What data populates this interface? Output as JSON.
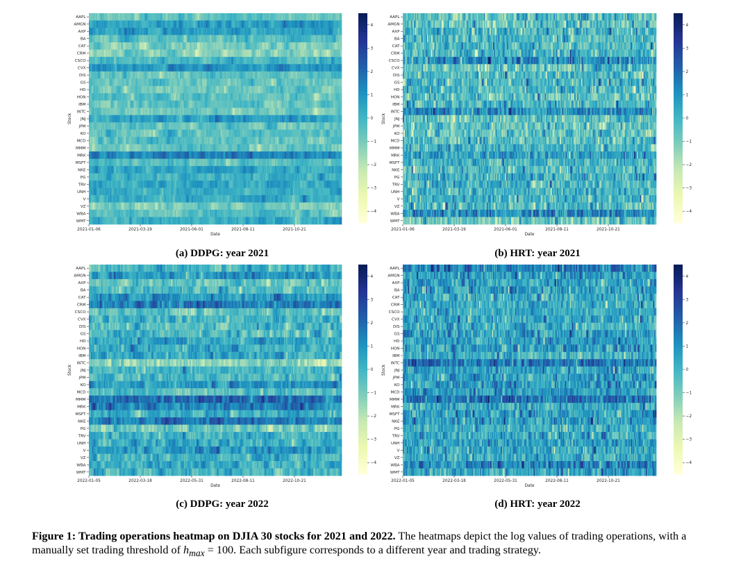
{
  "figure": {
    "caption_label": "Figure 1: Trading operations heatmap on DJIA 30 stocks for 2021 and 2022.",
    "caption_text_1": "The heatmaps depict the log values of trading operations, with a manually set trading threshold of",
    "caption_h": "h",
    "caption_sub": "max",
    "caption_eq": "= 100.",
    "caption_text_2": "Each subfigure corresponds to a different year and trading strategy."
  },
  "colors": {
    "colormap": "YlGnBu",
    "stops": [
      "#ffffd9",
      "#edf8b1",
      "#c7e9b4",
      "#7fcdbb",
      "#41b6c4",
      "#1d91c0",
      "#225ea8",
      "#253494",
      "#081d58"
    ]
  },
  "chart_data": [
    {
      "type": "heatmap",
      "subcaption": "(a) DDPG: year 2021",
      "xlabel": "Date",
      "ylabel": "Stock",
      "rows": [
        "AAPL",
        "AMGN",
        "AXP",
        "BA",
        "CAT",
        "CRM",
        "CSCO",
        "CVX",
        "DIS",
        "GS",
        "HD",
        "HON",
        "IBM",
        "INTC",
        "JNJ",
        "JPM",
        "KO",
        "MCD",
        "MMM",
        "MRK",
        "MSFT",
        "NKE",
        "PG",
        "TRV",
        "UNH",
        "V",
        "VZ",
        "WBA",
        "WMT"
      ],
      "x_ticks": [
        "2021-01-06",
        "2021-03-19",
        "2021-06-01",
        "2021-08-11",
        "2021-10-21"
      ],
      "colorbar": {
        "min": -4.5,
        "max": 4.5,
        "ticks": [
          "4",
          "3",
          "2",
          "1",
          "0",
          "−1",
          "−2",
          "−3",
          "−4"
        ]
      }
    },
    {
      "type": "heatmap",
      "subcaption": "(b) HRT: year 2021",
      "xlabel": "Date",
      "ylabel": "Stock",
      "rows": [
        "AAPL",
        "AMGN",
        "AXP",
        "BA",
        "CAT",
        "CRM",
        "CSCO",
        "CVX",
        "DIS",
        "GS",
        "HD",
        "HON",
        "IBM",
        "INTC",
        "JNJ",
        "JPM",
        "KO",
        "MCD",
        "MMM",
        "MRK",
        "MSFT",
        "NKE",
        "PG",
        "TRV",
        "UNH",
        "V",
        "VZ",
        "WBA",
        "WMT"
      ],
      "x_ticks": [
        "2021-01-06",
        "2021-03-19",
        "2021-06-01",
        "2021-08-11",
        "2021-10-21"
      ],
      "colorbar": {
        "min": -4.5,
        "max": 4.5,
        "ticks": [
          "4",
          "3",
          "2",
          "1",
          "0",
          "−1",
          "−2",
          "−3",
          "−4"
        ]
      }
    },
    {
      "type": "heatmap",
      "subcaption": "(c) DDPG: year 2022",
      "xlabel": "Date",
      "ylabel": "Stock",
      "rows": [
        "AAPL",
        "AMGN",
        "AXP",
        "BA",
        "CAT",
        "CRM",
        "CSCO",
        "CVX",
        "DIS",
        "GS",
        "HD",
        "HON",
        "IBM",
        "INTC",
        "JNJ",
        "JPM",
        "KO",
        "MCD",
        "MMM",
        "MRK",
        "MSFT",
        "NKE",
        "PG",
        "TRV",
        "UNH",
        "V",
        "VZ",
        "WBA",
        "WMT"
      ],
      "x_ticks": [
        "2022-01-05",
        "2022-03-18",
        "2022-05-31",
        "2022-08-11",
        "2022-10-21"
      ],
      "colorbar": {
        "min": -4.5,
        "max": 4.5,
        "ticks": [
          "4",
          "3",
          "2",
          "1",
          "0",
          "−1",
          "−2",
          "−3",
          "−4"
        ]
      }
    },
    {
      "type": "heatmap",
      "subcaption": "(d) HRT: year 2022",
      "xlabel": "Date",
      "ylabel": "Stock",
      "rows": [
        "AAPL",
        "AMGN",
        "AXP",
        "BA",
        "CAT",
        "CRM",
        "CSCO",
        "CVX",
        "DIS",
        "GS",
        "HD",
        "HON",
        "IBM",
        "INTC",
        "JNJ",
        "JPM",
        "KO",
        "MCD",
        "MMM",
        "MRK",
        "MSFT",
        "NKE",
        "PG",
        "TRV",
        "UNH",
        "V",
        "VZ",
        "WBA",
        "WMT"
      ],
      "x_ticks": [
        "2022-01-05",
        "2022-03-18",
        "2022-05-31",
        "2022-08-11",
        "2022-10-21"
      ],
      "colorbar": {
        "min": -4.5,
        "max": 4.5,
        "ticks": [
          "4",
          "3",
          "2",
          "1",
          "0",
          "−1",
          "−2",
          "−3",
          "−4"
        ]
      }
    }
  ]
}
